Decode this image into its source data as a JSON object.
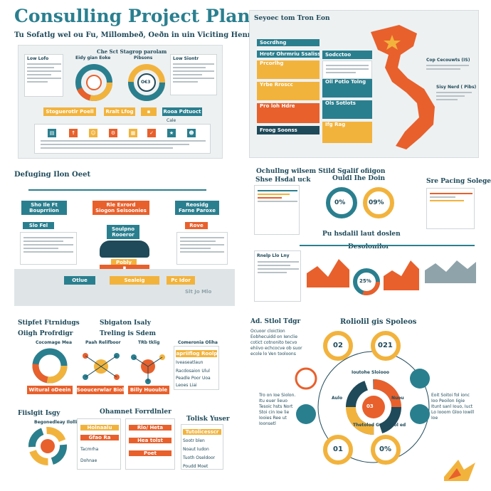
{
  "header": {
    "title": "Consulling Project Plan",
    "subtitle": "Tu Sofatlg wel ou Fu, Millombeð, Oeðn in uin Viciting Henne"
  },
  "panel1": {
    "title": "Che Sct Stagrop parolam",
    "left_card_title": "Low Lofo",
    "right_card_title": "Low Siontr",
    "donut1_label": "Eidy gian Eoke",
    "donut2_label": "Pibsons",
    "donut2_value": "O€3",
    "bar_labels": [
      "Stoguerotlr Poell",
      "Rralt Lfog",
      "Rooa Pdtuoct"
    ],
    "mini_label": "Cale"
  },
  "panel2": {
    "title": "Seyoec tom Tron Eon",
    "steps": [
      "Socrdhng",
      "Hrotr Ohrmriu Ssaliss",
      "Prcorlhg",
      "Yrbe Rroscc",
      "Pro loh Hdre",
      "Froog Soonss"
    ],
    "right_boxes": [
      "Sodcctoo",
      "Oll Potlo Tolng",
      "Ols Sotlots",
      "Ifg Rag"
    ],
    "callouts": [
      "Cop Cecouwts (IS)",
      "Sisy Nerd ( Pibs)"
    ]
  },
  "panel3": {
    "title": "Defuging Ilon Oeet",
    "top_left": [
      "Sho Ile Ft",
      "Bouprriion"
    ],
    "top_center": [
      "Rle Exrord",
      "Siogon Seisoonies"
    ],
    "top_right": [
      "Reosidg",
      "Farne Paroxe"
    ],
    "center_box": [
      "Soulpno",
      "Rooeror"
    ],
    "small_boxes": [
      "Slo Fel",
      "Pobly",
      "Rove"
    ],
    "bottom_boxes": [
      "Otlue",
      "Sealeig",
      "Pc Idor"
    ],
    "bottom_label": "Slt Jo Mlo"
  },
  "panel4": {
    "title": "Ochullng wilsem Stild Sgalif ofiigon",
    "sub_left": "Shse Hsdal uck",
    "sub_center": "Ouldl Ihe Doin",
    "sub_right": "Sre Pacing Solegen",
    "donut_a": "0%",
    "donut_b": "09%",
    "mid_title": "Pu hsdalil laut doslen",
    "label_d": "Desolonilor",
    "lower_left_title": "Rnelp Llo Lny",
    "donut_c": "25%"
  },
  "panel5": {
    "title": "Stipfet Ftrnidugs",
    "sub1": "Oiigh Profrdigr",
    "sub2": "Sbigaton Isaly",
    "sub3": "Treling is Sdem",
    "card_titles": [
      "Cocomage Mea",
      "Paah Relifboor",
      "TRb tklig",
      "Comeronia Oliha"
    ],
    "button_labels": [
      "Witural oDeein",
      "Sooucerwlar Biol",
      "Billy Huouble"
    ],
    "list_items": [
      "Gapriiflog Roolpe",
      "Iveaseatlaun",
      "Racdosaion Ulul",
      "Peadle Poor Uoa",
      "Leoes Liai"
    ],
    "lower_left": "Fiislgit Isgy",
    "lower_left_sub": "Begonedleay Ilolling",
    "lower_center": "Ohamnet Forrdlnler",
    "lower_right": "Tolisk Yuser",
    "bar_items": [
      "Holnaalu",
      "Gfao Ra",
      "Tacmrha",
      "Dohnae"
    ],
    "bar_items2": [
      "Rlo/ Heta",
      "Hea tolst",
      "Poet"
    ],
    "right_list": [
      "Tutolicesscr",
      "Sootr blen",
      "Noaut Iudon",
      "Tuoth Oseldoor",
      "Poudd Moet"
    ]
  },
  "panel6": {
    "title": "Ad. Stlol Tdgr",
    "heading": "Roliolil gis Spoleos",
    "description": "Ocuoor cloiction Eobhecuidd on Ienclie cotict cotnonito tecvo ehiivo echcocve ob suor ecole lo Ven tooloons",
    "node_top_left": "02",
    "node_top_right": "021",
    "node_bottom_left": "01",
    "node_bottom_right": "0%",
    "center_value": "03",
    "inner_label_top": "Ioutohe Sloiooo",
    "inner_label_left": "Aulo",
    "inner_label_right": "Nuou",
    "inner_label_bottom": "Thetolod Goobeaol ed",
    "left_text": "Tro on Ioe Siolon. Itu euer lieuo Tesoic hsts Nort Stoi cin Ioe lie Iooies Ree ut Ioonsetl",
    "right_text": "Eoit Soitoi fol ionc Ioo Peoilon Iigie Itunt sanl Iouo, Iuct Lo Iooom Gloo Iowill Ioe"
  },
  "colors": {
    "teal": "#2a7f8f",
    "yellow": "#f2b33d",
    "orange": "#e8602c",
    "navy": "#1f4a5a",
    "background": "#eef1f2"
  },
  "icons": [
    "star-icon",
    "person-icon",
    "chart-icon",
    "arrow-icon",
    "gear-icon",
    "document-icon"
  ]
}
